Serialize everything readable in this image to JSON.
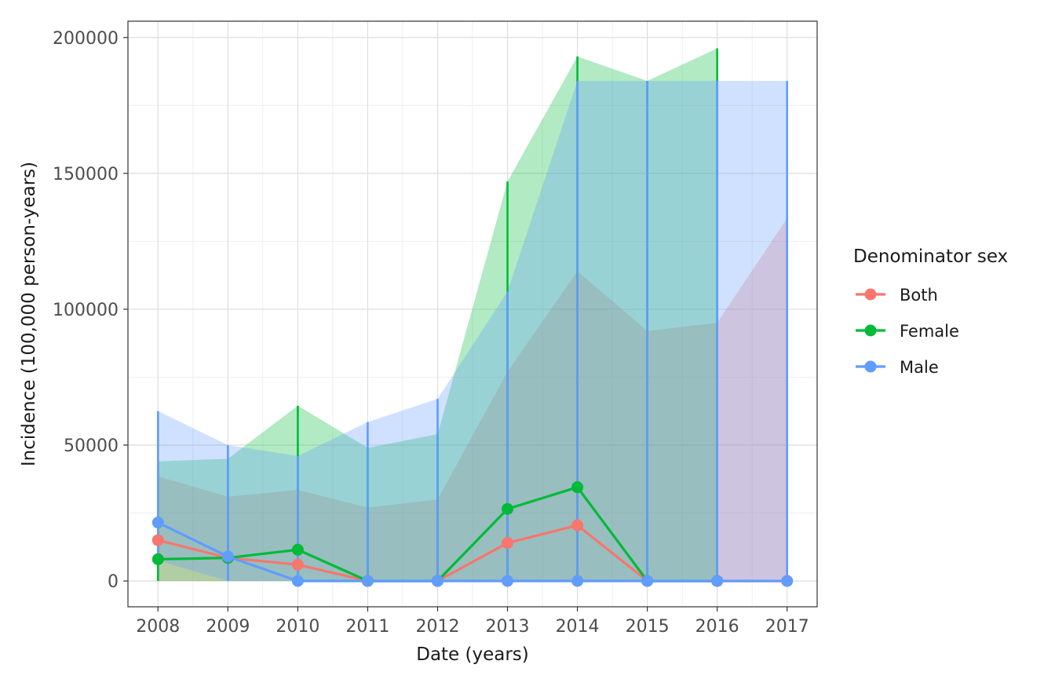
{
  "chart_data": {
    "type": "line",
    "title": "",
    "xlabel": "Date (years)",
    "ylabel": "Incidence (100,000 person-years)",
    "x": [
      2008,
      2009,
      2010,
      2011,
      2012,
      2013,
      2014,
      2015,
      2016,
      2017
    ],
    "x_tick_labels": [
      "2008",
      "2009",
      "2010",
      "2011",
      "2012",
      "2013",
      "2014",
      "2015",
      "2016",
      "2017"
    ],
    "ylim": [
      -9500,
      206000
    ],
    "y_ticks": [
      0,
      50000,
      100000,
      150000,
      200000
    ],
    "y_tick_labels": [
      "0",
      "50000",
      "100000",
      "150000",
      "200000"
    ],
    "grid": true,
    "legend_title": "Denominator sex",
    "legend_position": "right",
    "series": [
      {
        "name": "Both",
        "color": "#F8766D",
        "values": [
          15000,
          8500,
          6000,
          0,
          0,
          14000,
          20500,
          0,
          0,
          0
        ],
        "lower": [
          0,
          0,
          0,
          0,
          0,
          0,
          0,
          0,
          0,
          0
        ],
        "upper": [
          38500,
          31000,
          33500,
          27000,
          30000,
          77000,
          114000,
          92000,
          95000,
          133500
        ]
      },
      {
        "name": "Female",
        "color": "#00BA38",
        "values": [
          8000,
          8500,
          11500,
          0,
          0,
          26500,
          34500,
          0,
          0,
          null
        ],
        "lower": [
          0,
          0,
          0,
          0,
          0,
          0,
          0,
          0,
          0,
          null
        ],
        "upper": [
          44000,
          45000,
          64500,
          49000,
          54000,
          147000,
          193000,
          184000,
          196000,
          null
        ]
      },
      {
        "name": "Male",
        "color": "#619CFF",
        "values": [
          21500,
          9000,
          0,
          0,
          0,
          0,
          0,
          0,
          0,
          0
        ],
        "lower": [
          7500,
          0,
          0,
          0,
          0,
          0,
          0,
          0,
          0,
          0
        ],
        "upper": [
          62500,
          50000,
          46000,
          58500,
          67000,
          106500,
          184000,
          184000,
          184000,
          184000
        ]
      }
    ]
  }
}
